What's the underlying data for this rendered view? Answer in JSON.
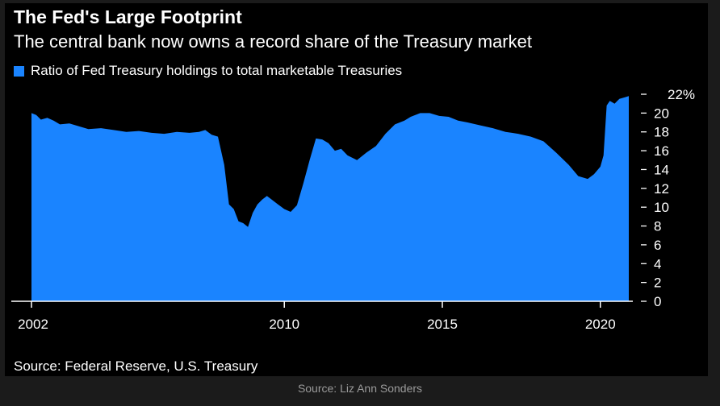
{
  "header": {
    "title": "The Fed's Large Footprint",
    "subtitle": "The central bank now owns a record share of the Treasury market"
  },
  "legend": {
    "label": "Ratio of Fed Treasury holdings to total marketable Treasuries",
    "color": "#1a84ff"
  },
  "footer": {
    "source": "Source: Federal Reserve, U.S. Treasury",
    "credit": "Source: Liz Ann Sonders"
  },
  "colors": {
    "background": "#000000",
    "page": "#1b1b1b",
    "area": "#1a84ff",
    "text": "#ffffff",
    "muted": "#9a9a9a"
  },
  "chart_data": {
    "type": "area",
    "title": "The Fed's Large Footprint",
    "subtitle": "The central bank now owns a record share of the Treasury market",
    "xlabel": "",
    "ylabel": "",
    "xlim": [
      2002,
      2020.9
    ],
    "ylim": [
      0,
      22
    ],
    "y_ticks": [
      0,
      2,
      4,
      6,
      8,
      10,
      12,
      14,
      16,
      18,
      20,
      22
    ],
    "y_tick_labels": [
      "0",
      "2",
      "4",
      "6",
      "8",
      "10",
      "12",
      "14",
      "16",
      "18",
      "20",
      "22%"
    ],
    "x_ticks": [
      2002,
      2010,
      2015,
      2020
    ],
    "x_tick_labels": [
      "2002",
      "2010",
      "2015",
      "2020"
    ],
    "y_axis_position": "right",
    "grid": false,
    "legend_position": "top-left",
    "series": [
      {
        "name": "Ratio of Fed Treasury holdings to total marketable Treasuries",
        "color": "#1a84ff",
        "x": [
          2002.0,
          2002.15,
          2002.3,
          2002.5,
          2002.7,
          2002.9,
          2003.2,
          2003.5,
          2003.8,
          2004.2,
          2004.6,
          2005.0,
          2005.4,
          2005.8,
          2006.2,
          2006.6,
          2007.0,
          2007.3,
          2007.5,
          2007.7,
          2007.9,
          2008.1,
          2008.25,
          2008.4,
          2008.55,
          2008.7,
          2008.85,
          2009.0,
          2009.15,
          2009.3,
          2009.45,
          2009.6,
          2009.8,
          2010.0,
          2010.2,
          2010.4,
          2010.6,
          2010.8,
          2011.0,
          2011.2,
          2011.4,
          2011.6,
          2011.8,
          2012.0,
          2012.3,
          2012.6,
          2012.9,
          2013.2,
          2013.5,
          2013.8,
          2014.0,
          2014.3,
          2014.6,
          2014.9,
          2015.2,
          2015.5,
          2015.8,
          2016.2,
          2016.6,
          2017.0,
          2017.4,
          2017.8,
          2018.2,
          2018.6,
          2019.0,
          2019.3,
          2019.6,
          2019.8,
          2020.0,
          2020.1,
          2020.2,
          2020.3,
          2020.45,
          2020.6,
          2020.8,
          2020.9
        ],
        "values": [
          20.0,
          19.8,
          19.3,
          19.5,
          19.2,
          18.8,
          18.9,
          18.6,
          18.3,
          18.4,
          18.2,
          18.0,
          18.1,
          17.9,
          17.8,
          18.0,
          17.9,
          18.0,
          18.2,
          17.7,
          17.5,
          14.5,
          10.3,
          9.8,
          8.5,
          8.3,
          7.9,
          9.4,
          10.3,
          10.8,
          11.2,
          10.8,
          10.3,
          9.8,
          9.5,
          10.2,
          12.5,
          15.0,
          17.3,
          17.2,
          16.8,
          16.0,
          16.2,
          15.5,
          15.0,
          15.8,
          16.5,
          17.8,
          18.8,
          19.2,
          19.6,
          20.0,
          20.0,
          19.7,
          19.6,
          19.2,
          19.0,
          18.7,
          18.4,
          18.0,
          17.8,
          17.5,
          17.0,
          15.8,
          14.5,
          13.3,
          13.0,
          13.5,
          14.3,
          15.5,
          20.8,
          21.3,
          21.0,
          21.5,
          21.7,
          21.8
        ]
      }
    ]
  }
}
